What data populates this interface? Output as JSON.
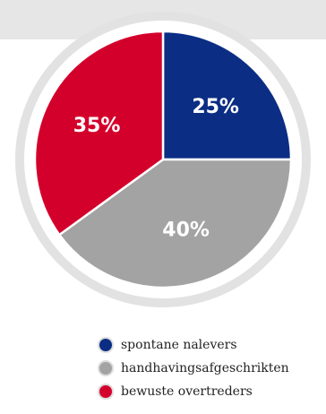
{
  "chart_data": {
    "type": "pie",
    "categories": [
      "spontane nalevers",
      "handhavingsafgeschrikten",
      "bewuste overtreders"
    ],
    "values": [
      25,
      40,
      35
    ],
    "labels": [
      "25%",
      "40%",
      "35%"
    ],
    "colors": [
      "#0b2d84",
      "#a3a3a3",
      "#d4002c"
    ],
    "legend": "bottom",
    "title": ""
  },
  "theme": {
    "ring_color": "#e2e2e2",
    "band_color": "#e6e6e6"
  }
}
